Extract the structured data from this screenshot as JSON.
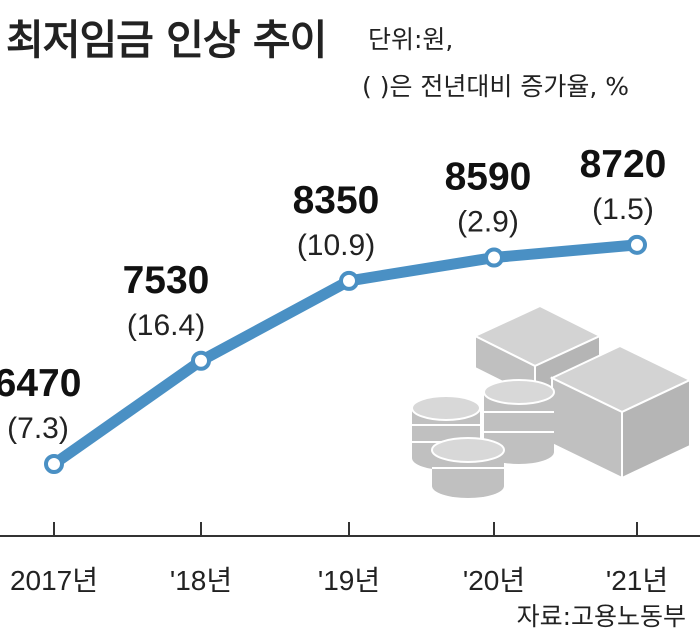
{
  "title": "최저임금 인상 추이",
  "unit_note": "단위:원,",
  "paren_note": "(    )은 전년대비 증가율, %",
  "source": "자료:고용노동부",
  "colors": {
    "line": "#4a90c4",
    "marker_fill": "#ffffff",
    "money": "#c8c8c8"
  },
  "chart_data": {
    "type": "line",
    "title": "최저임금 인상 추이",
    "categories": [
      "2017년",
      "'18년",
      "'19년",
      "'20년",
      "'21년"
    ],
    "values": [
      6470,
      7530,
      8350,
      8590,
      8720
    ],
    "growth_pct": [
      7.3,
      16.4,
      10.9,
      2.9,
      1.5
    ],
    "value_labels": [
      "6470",
      "7530",
      "8350",
      "8590",
      "8720"
    ],
    "growth_labels": [
      "(7.3)",
      "(16.4)",
      "(10.9)",
      "(2.9)",
      "(1.5)"
    ],
    "ylim": [
      6000,
      9000
    ],
    "grid": false,
    "legend": "none"
  },
  "decoration": {
    "icon": "coins-and-cash-icon"
  }
}
